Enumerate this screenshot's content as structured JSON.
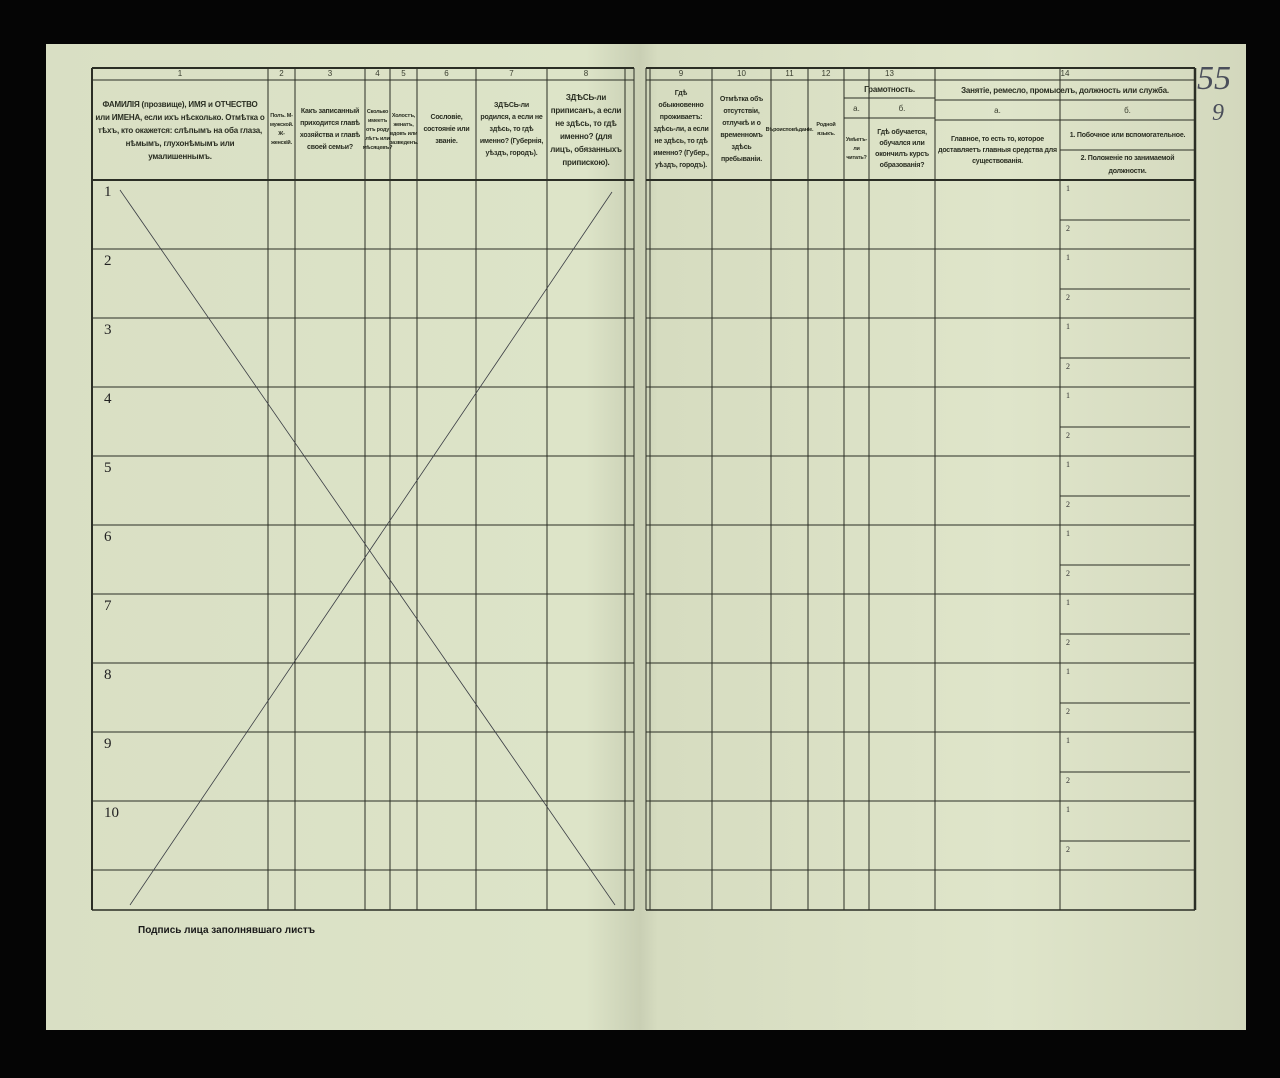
{
  "document": {
    "columns": [
      {
        "num": "1",
        "text": "ФАМИЛІЯ (прозвище), ИМЯ и ОТЧЕСТВО или ИМЕНА, если ихъ нѣсколько. Отмѣтка о тѣхъ, кто окажется: слѣпымъ на оба глаза, нѣмымъ, глухонѣмымъ или умалишеннымъ."
      },
      {
        "num": "2",
        "text": "Полъ. М-мужской. Ж-женскій."
      },
      {
        "num": "3",
        "text": "Какъ записанный приходится главѣ хозяйства и главѣ своей семьи?"
      },
      {
        "num": "4",
        "text": "Сколько имеетъ отъ роду лѣтъ или мѣсяцевъ?"
      },
      {
        "num": "5",
        "text": "Холостъ, женатъ, вдовъ или разведенъ."
      },
      {
        "num": "6",
        "text": "Сословіе, состояніе или званіе."
      },
      {
        "num": "7",
        "text": "ЗДѢСЬ-ли родился, а если не здѣсь, то гдѣ именно? (Губернія, уѣздъ, городъ)."
      },
      {
        "num": "8",
        "text": "ЗДѢСЬ-ли приписанъ, а если не здѣсь, то гдѣ именно? (для лицъ, обязанныхъ припискою)."
      },
      {
        "num": "9",
        "text": "Гдѣ обыкновенно проживаетъ: здѣсь-ли, а если не здѣсь, то гдѣ именно? (Губер., уѣздъ, городъ)."
      },
      {
        "num": "10",
        "text": "Отмѣтка объ отсутствіи, отлучкѣ и о временномъ здѣсь пребываніи."
      },
      {
        "num": "11",
        "text": "Вѣроисповѣданіе."
      },
      {
        "num": "12",
        "text": "Родной языкъ."
      }
    ],
    "col13": {
      "num": "13",
      "title": "Грамотность.",
      "a": "а.",
      "b": "б.",
      "a_text": "Умѣетъ-ли читать?",
      "b_text": "Гдѣ обучается, обучался или окончилъ курсъ образованія?"
    },
    "col14": {
      "num": "14",
      "title": "Занятіе, ремесло, промыселъ, должность или служба.",
      "a": "а.",
      "b": "б.",
      "a_text": "Главное, то есть то, которое доставляетъ главныя средства для существованія.",
      "b1": "1. Побочное или вспомогательное.",
      "b2": "2. Положеніе по занимаемой должности."
    },
    "rows": [
      "1",
      "2",
      "3",
      "4",
      "5",
      "6",
      "7",
      "8",
      "9",
      "10"
    ],
    "sub_labels": [
      "1",
      "2"
    ],
    "signature_label": "Подпись лица заполнявшаго листъ",
    "handwritten": {
      "sheet": "55",
      "mark": "9"
    }
  }
}
